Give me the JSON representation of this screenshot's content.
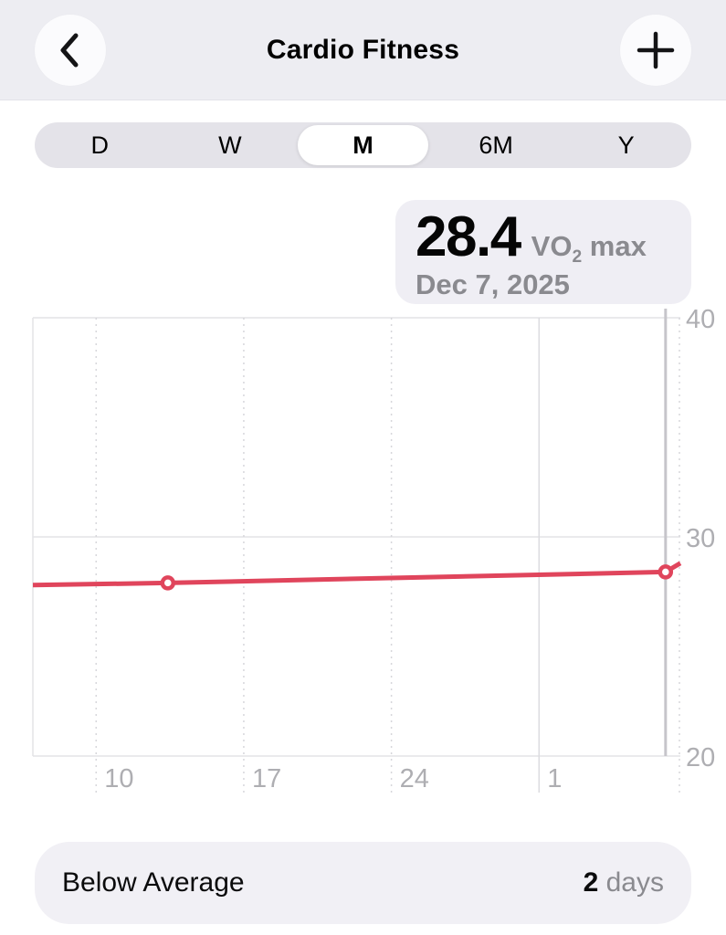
{
  "header": {
    "title": "Cardio Fitness",
    "back_icon": "chevron-left",
    "add_icon": "plus"
  },
  "range_selector": {
    "options": [
      {
        "label": "D",
        "selected": false
      },
      {
        "label": "W",
        "selected": false
      },
      {
        "label": "M",
        "selected": true
      },
      {
        "label": "6M",
        "selected": false
      },
      {
        "label": "Y",
        "selected": false
      }
    ]
  },
  "callout": {
    "value": "28.4",
    "unit": "VO₂ max",
    "unit_prefix": "VO",
    "unit_sub": "2",
    "unit_suffix": " max",
    "date": "Dec 7, 2025"
  },
  "summary": {
    "label": "Below Average",
    "count": "2",
    "count_unit": "days"
  },
  "colors": {
    "header-bg": "#ededf2",
    "circle-bg": "#fbfbfd",
    "seg-bg": "#e4e3e9",
    "seg-selected-bg": "#ffffff",
    "callout-bg": "#efeef4",
    "pill-bg": "#f1f0f5",
    "text-secondary": "#8a8a8f",
    "axis-label": "#aeaeb2",
    "grid-solid": "#e3e3e6",
    "grid-dashed": "#d7d7db",
    "month-line": "#dcdce0",
    "today-line": "#c6c5ca",
    "series-red": "#e0455c"
  },
  "chart_data": {
    "type": "line",
    "title": "VO₂ max — monthly view ending Dec 7, 2025",
    "x_axis": {
      "domain_days": [
        0,
        30.7
      ],
      "today_day": 30,
      "ticks": [
        {
          "day": 3,
          "label": "10",
          "style": "dashed"
        },
        {
          "day": 10,
          "label": "17",
          "style": "dashed"
        },
        {
          "day": 17,
          "label": "24",
          "style": "dashed"
        },
        {
          "day": 24,
          "label": "1",
          "style": "solid"
        }
      ],
      "right_edge_dashed": true
    },
    "y_axis": {
      "min": 20,
      "max": 40,
      "ticks": [
        40,
        30,
        20
      ],
      "side": "right"
    },
    "series": [
      {
        "name": "VO₂ max",
        "color": "#e0455c",
        "points_day_value": [
          [
            0,
            27.8
          ],
          [
            6.4,
            27.9
          ],
          [
            30,
            28.4
          ],
          [
            30.7,
            28.8
          ]
        ],
        "markers_day_value": [
          [
            6.4,
            27.9
          ],
          [
            30,
            28.4
          ]
        ]
      }
    ],
    "data_points": [
      {
        "day": 6.4,
        "value": 27.9
      },
      {
        "day": 30,
        "date": "Dec 7, 2025",
        "value": 28.4
      }
    ],
    "grid": true,
    "legend": "none"
  }
}
